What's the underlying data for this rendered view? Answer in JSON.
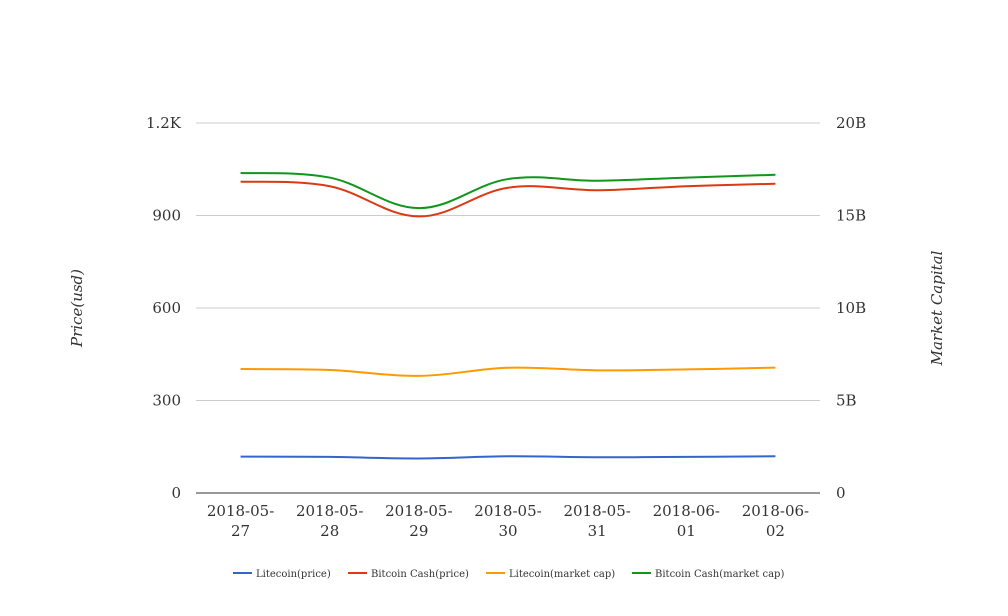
{
  "chart_data": {
    "type": "line",
    "title": "",
    "categories": [
      [
        "2018-05-",
        "27"
      ],
      [
        "2018-05-",
        "28"
      ],
      [
        "2018-05-",
        "29"
      ],
      [
        "2018-05-",
        "30"
      ],
      [
        "2018-05-",
        "31"
      ],
      [
        "2018-06-",
        "01"
      ],
      [
        "2018-06-",
        "02"
      ]
    ],
    "y_left": {
      "label": "Price(usd)",
      "ticks": [
        "0",
        "300",
        "600",
        "900",
        "1.2K"
      ],
      "range": [
        0,
        1200
      ]
    },
    "y_right": {
      "label": "Market Capital",
      "ticks": [
        "0",
        "5B",
        "10B",
        "15B",
        "20B"
      ],
      "range": [
        0,
        20000000000
      ]
    },
    "grid": true,
    "legend_position": "bottom",
    "series": [
      {
        "name": "Litecoin(price)",
        "axis": "left",
        "color": "#3366cc",
        "values": [
          118,
          117,
          112,
          119,
          116,
          117,
          119
        ]
      },
      {
        "name": "Bitcoin Cash(price)",
        "axis": "left",
        "color": "#dc3912",
        "values": [
          1010,
          995,
          897,
          990,
          982,
          995,
          1003
        ]
      },
      {
        "name": "Litecoin(market cap)",
        "axis": "right",
        "color": "#ff9900",
        "values": [
          6700000000,
          6650000000,
          6330000000,
          6770000000,
          6630000000,
          6680000000,
          6780000000
        ]
      },
      {
        "name": "Bitcoin Cash(market cap)",
        "axis": "right",
        "color": "#109618",
        "values": [
          17300000000,
          17050000000,
          15400000000,
          16970000000,
          16880000000,
          17050000000,
          17200000000
        ]
      }
    ]
  }
}
